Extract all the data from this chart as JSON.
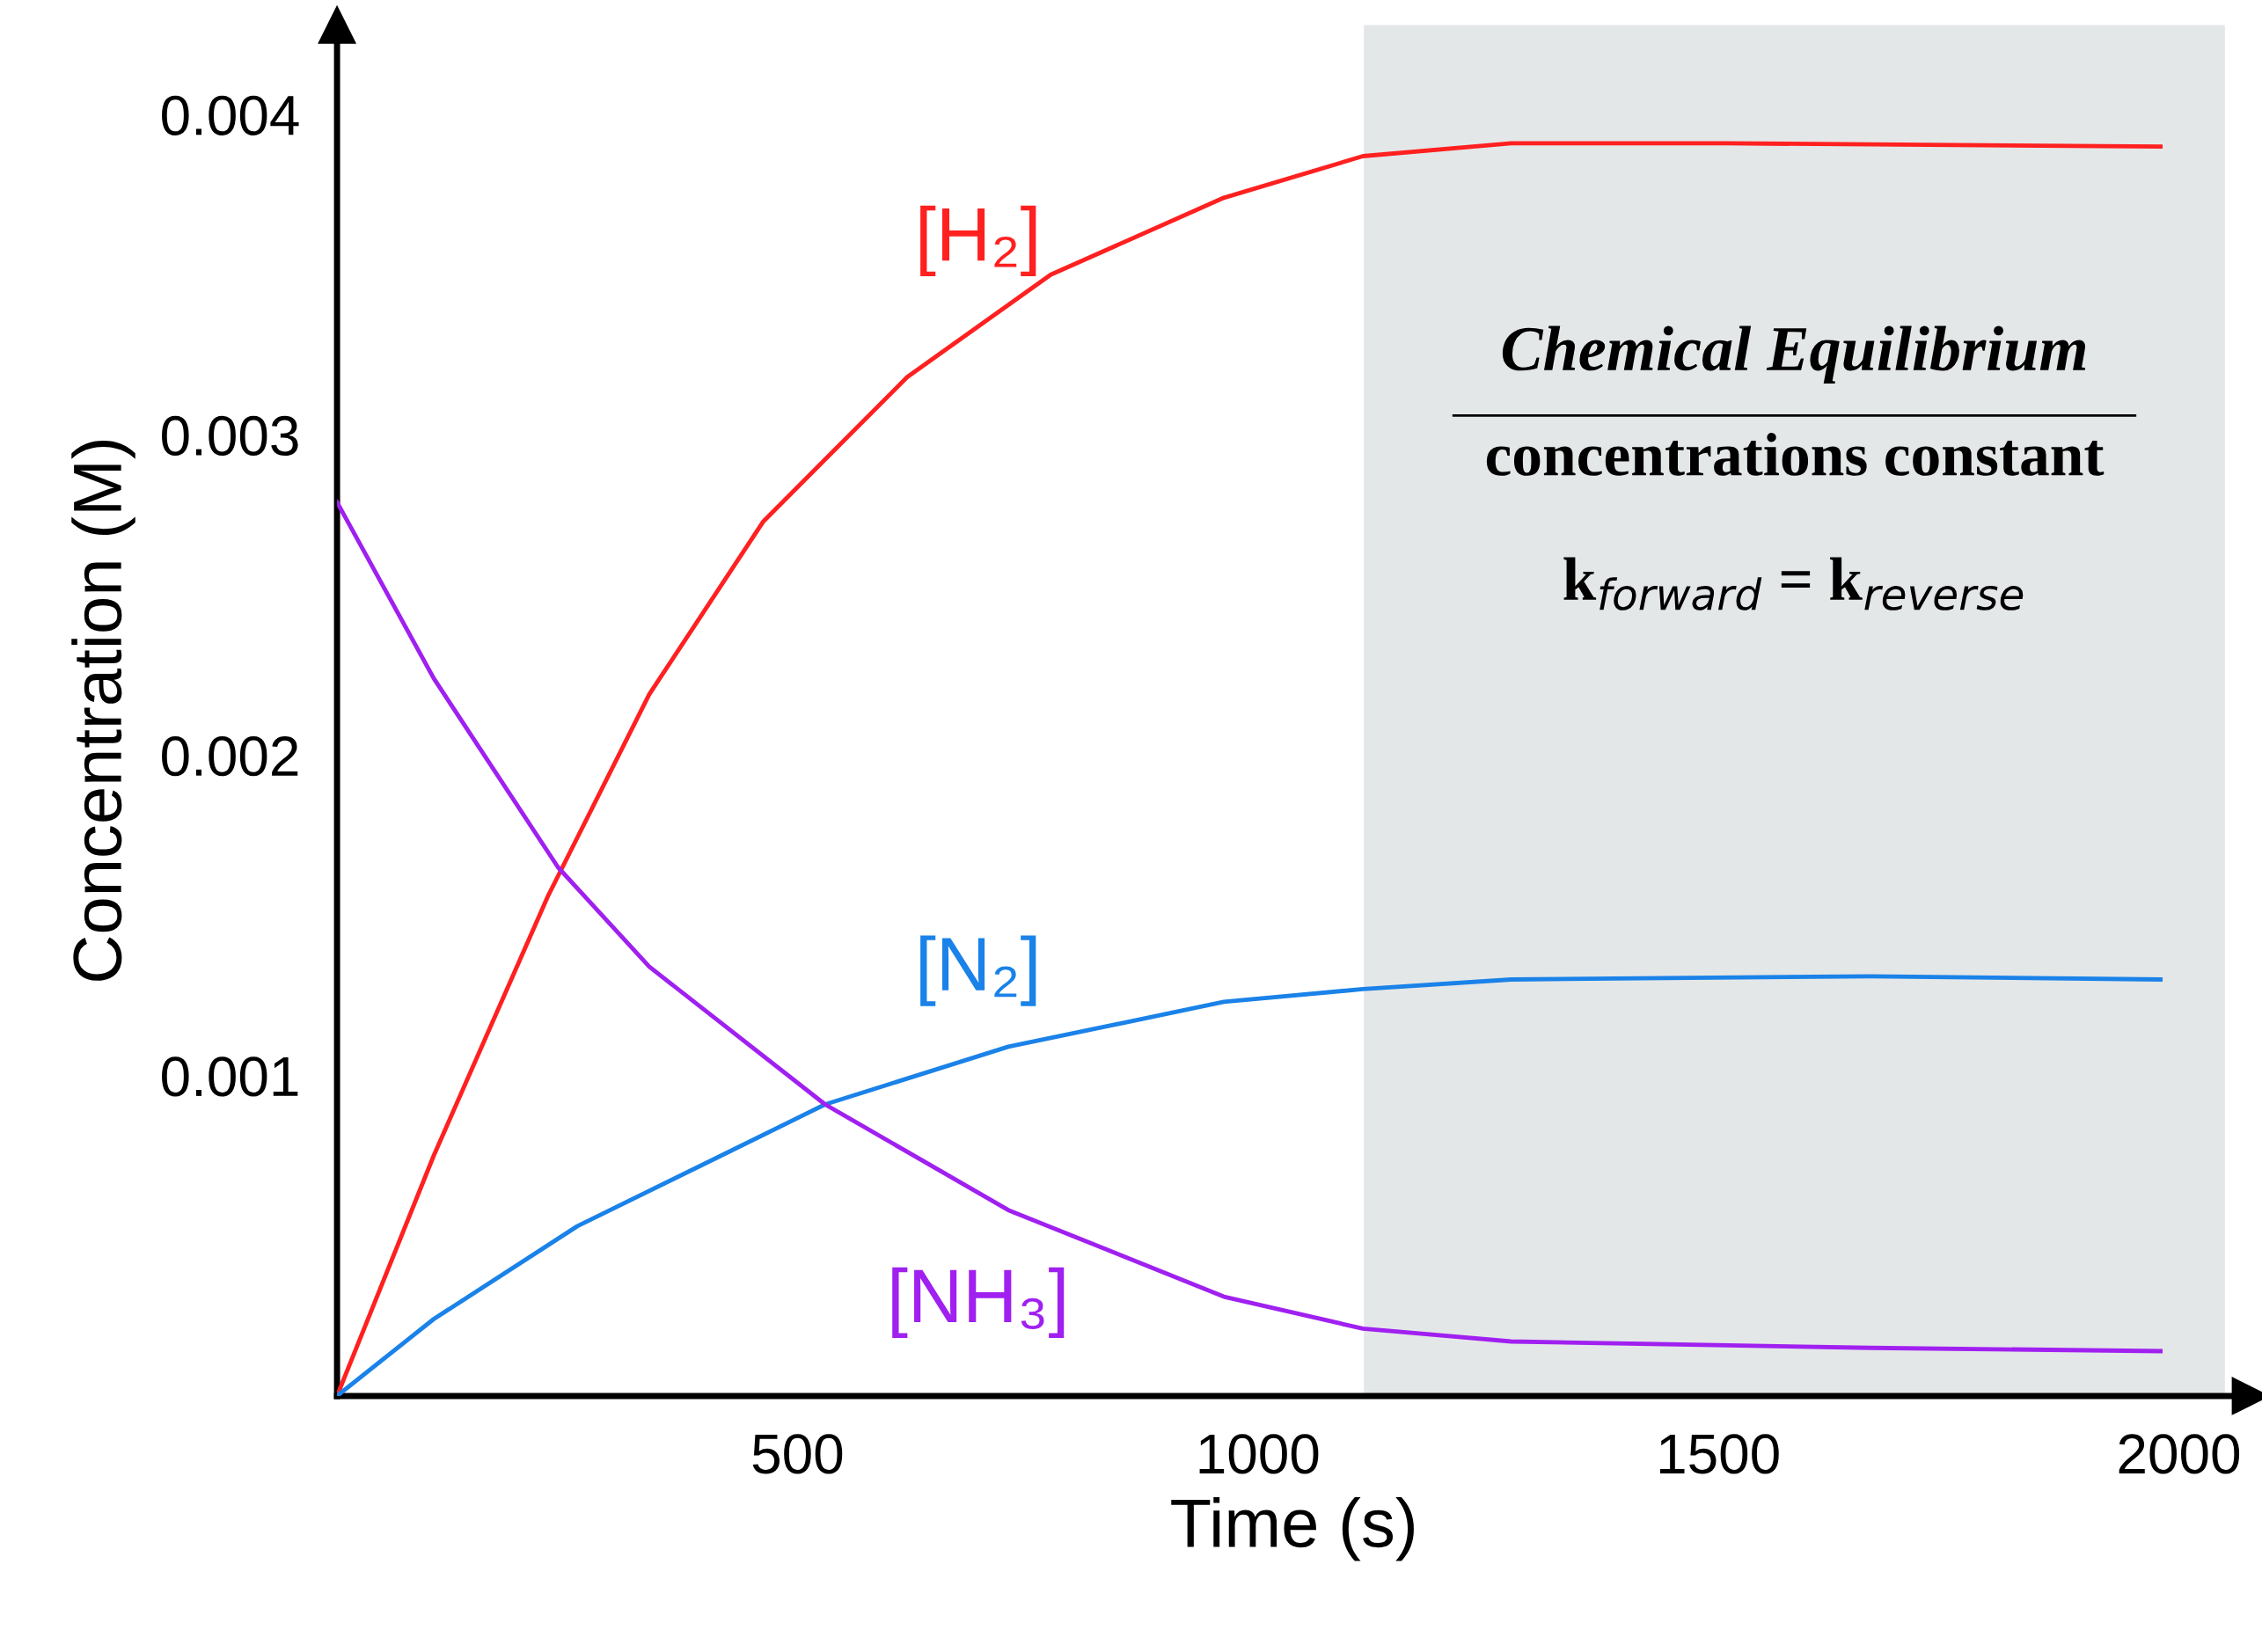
{
  "chart_data": {
    "type": "line",
    "xlabel": "Time (s)",
    "ylabel": "Concentration (M)",
    "xlim": [
      0,
      2078
    ],
    "ylim": [
      0,
      0.00428
    ],
    "xticks": [
      500,
      1000,
      1500,
      2000
    ],
    "yticks": [
      0.001,
      0.002,
      0.003,
      0.004
    ],
    "grid": false,
    "legend": false,
    "marker": "none",
    "line_style": "solid",
    "series": [
      {
        "name": "[H₂]",
        "color": "#ff2020",
        "x": [
          0,
          105,
          229,
          339,
          463,
          619,
          775,
          963,
          1114,
          1275,
          1509,
          1980
        ],
        "values": [
          0,
          0.00075,
          0.00156,
          0.00219,
          0.00273,
          0.00318,
          0.0035,
          0.00374,
          0.00387,
          0.00391,
          0.00391,
          0.0039
        ]
      },
      {
        "name": "[N₂]",
        "color": "#1a82e8",
        "x": [
          0,
          105,
          261,
          417,
          530,
          729,
          963,
          1114,
          1275,
          1665,
          1980
        ],
        "values": [
          0,
          0.00024,
          0.00053,
          0.00075,
          0.00091,
          0.00109,
          0.00123,
          0.00127,
          0.0013,
          0.00131,
          0.0013
        ]
      },
      {
        "name": "[NH₃]",
        "color": "#a020f0",
        "x": [
          0,
          105,
          240,
          339,
          530,
          729,
          963,
          1114,
          1275,
          1665,
          1980
        ],
        "values": [
          0.00279,
          0.00224,
          0.00165,
          0.00134,
          0.00091,
          0.00058,
          0.00031,
          0.00021,
          0.00017,
          0.00015,
          0.00014
        ]
      }
    ],
    "bands": [
      {
        "axis": "x",
        "from": 1115,
        "to": 2050,
        "color": "#e4e7e8",
        "label": "Chemical Equilibrium"
      }
    ],
    "annotations": [
      "concentrations constant",
      "k$_{forward}$ = k$_{reverse}$"
    ]
  }
}
